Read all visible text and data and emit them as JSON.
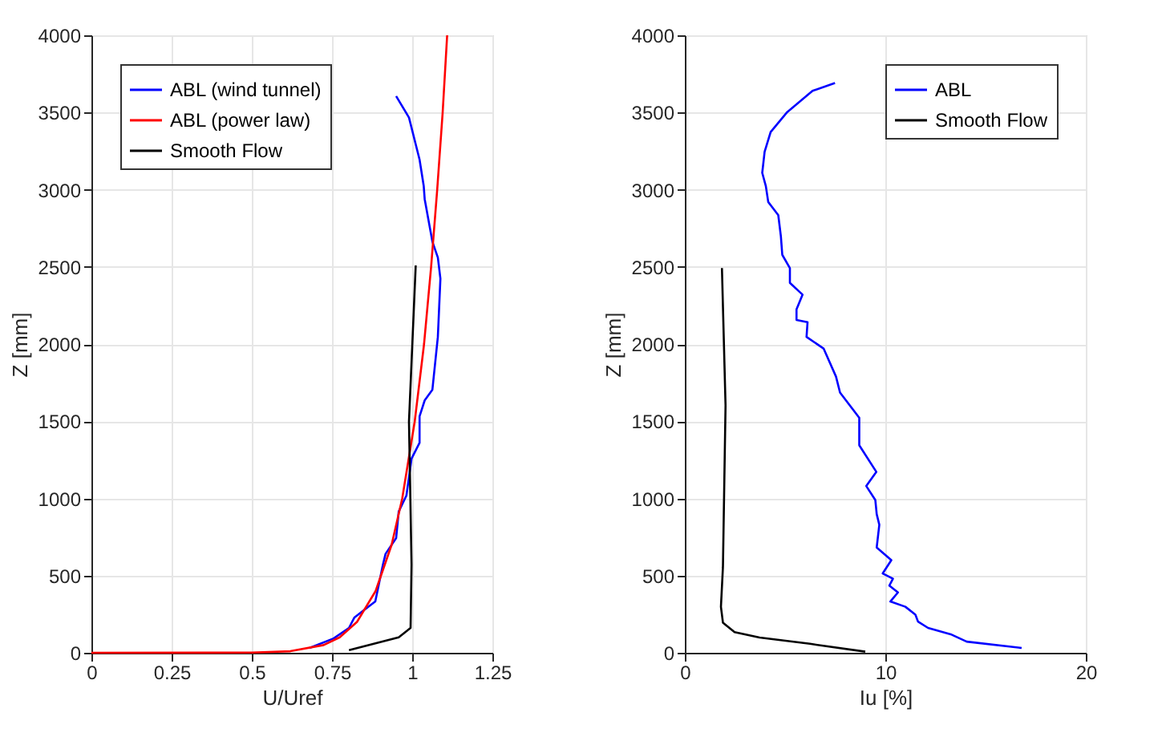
{
  "chart_data": [
    {
      "type": "line",
      "xlabel": "U/Uref",
      "ylabel": "Z [mm]",
      "xlim": [
        0,
        1.25
      ],
      "ylim": [
        0,
        4000
      ],
      "xticks": [
        0,
        0.25,
        0.5,
        0.75,
        1,
        1.25
      ],
      "yticks": [
        0,
        500,
        1000,
        1500,
        2000,
        2500,
        3000,
        3500,
        4000
      ],
      "grid": true,
      "legend": "top left",
      "series": [
        {
          "name": "ABL (wind tunnel)",
          "color": "#0000ff",
          "x": [
            0.68,
            0.755,
            0.803,
            0.82,
            0.885,
            0.909,
            0.917,
            0.95,
            0.958,
            0.982,
            0.998,
            1.023,
            1.023,
            1.039,
            1.063,
            1.08,
            1.088,
            1.08,
            1.063,
            1.039,
            1.036,
            1.023,
            0.99,
            0.95
          ],
          "values": [
            31,
            93,
            161,
            229,
            332,
            573,
            641,
            743,
            915,
            1018,
            1258,
            1360,
            1532,
            1635,
            1704,
            2046,
            2424,
            2560,
            2663,
            2938,
            3023,
            3195,
            3467,
            3606
          ]
        },
        {
          "name": "ABL (power law)",
          "color": "#ff0000",
          "x": [
            0,
            0.5,
            0.62,
            0.724,
            0.774,
            0.828,
            0.886,
            0.936,
            0.969,
            1.008,
            1.037,
            1.059,
            1.078,
            1.095,
            1.109
          ],
          "values": [
            0,
            1,
            10,
            50,
            100,
            200,
            400,
            700,
            1000,
            1500,
            2000,
            2500,
            3000,
            3500,
            4000
          ]
        },
        {
          "name": "Smooth Flow",
          "color": "#000000",
          "x": [
            0.803,
            0.958,
            0.995,
            0.998,
            0.99,
            1.011
          ],
          "values": [
            17,
            100,
            161,
            573,
            1498,
            2509
          ]
        }
      ]
    },
    {
      "type": "line",
      "xlabel": "Iu [%]",
      "ylabel": "Z [mm]",
      "xlim": [
        0,
        20
      ],
      "ylim": [
        0,
        4000
      ],
      "xticks": [
        0,
        10,
        20
      ],
      "yticks": [
        0,
        500,
        1000,
        1500,
        2000,
        2500,
        3000,
        3500,
        4000
      ],
      "grid": true,
      "legend": "top right",
      "series": [
        {
          "name": "ABL",
          "color": "#0000ff",
          "x": [
            16.8,
            14.06,
            13.26,
            12.13,
            11.63,
            11.5,
            11.0,
            10.25,
            10.63,
            10.2,
            10.38,
            9.87,
            10.3,
            9.57,
            9.7,
            9.57,
            9.5,
            9.05,
            9.55,
            8.7,
            8.7,
            7.74,
            7.54,
            6.92,
            6.07,
            6.12,
            5.57,
            5.57,
            5.87,
            5.24,
            5.24,
            4.86,
            4.79,
            4.66,
            4.16,
            4.04,
            3.86,
            3.98,
            4.28,
            5.11,
            6.37,
            7.49
          ],
          "values": [
            31,
            72,
            120,
            161,
            202,
            247,
            298,
            332,
            391,
            435,
            480,
            514,
            600,
            682,
            829,
            898,
            990,
            1080,
            1172,
            1344,
            1522,
            1686,
            1789,
            1971,
            2046,
            2142,
            2156,
            2225,
            2320,
            2396,
            2492,
            2578,
            2698,
            2835,
            2920,
            3023,
            3109,
            3246,
            3373,
            3503,
            3640,
            3691
          ]
        },
        {
          "name": "Smooth Flow",
          "color": "#000000",
          "x": [
            9.0,
            6.24,
            3.73,
            2.48,
            1.9,
            1.8,
            1.9,
            2.03,
            1.85
          ],
          "values": [
            7,
            58,
            99,
            134,
            195,
            298,
            555,
            1601,
            2492
          ]
        }
      ]
    }
  ]
}
